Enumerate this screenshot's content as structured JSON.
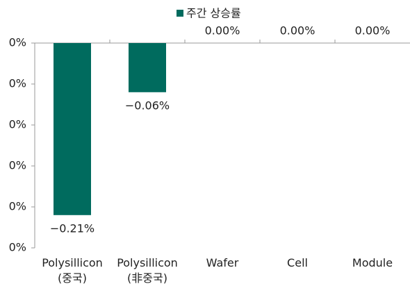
{
  "chart_data": {
    "type": "bar",
    "legend": "주간 상승률",
    "categories": [
      "Polysillicon\n(중국)",
      "Polysillicon\n(非중국)",
      "Wafer",
      "Cell",
      "Module"
    ],
    "values": [
      -0.21,
      -0.06,
      0,
      0,
      0
    ],
    "value_labels": [
      "−0.21%",
      "−0.06%",
      "0.00%",
      "0.00%",
      "0.00%"
    ],
    "color": "#006b5e",
    "ylim": [
      -0.25,
      0
    ],
    "yticks": [
      {
        "value": 0,
        "label": "0%"
      },
      {
        "value": -0.05,
        "label": "0%"
      },
      {
        "value": -0.1,
        "label": "0%"
      },
      {
        "value": -0.15,
        "label": "0%"
      },
      {
        "value": -0.2,
        "label": "0%"
      },
      {
        "value": -0.25,
        "label": "0%"
      }
    ]
  }
}
